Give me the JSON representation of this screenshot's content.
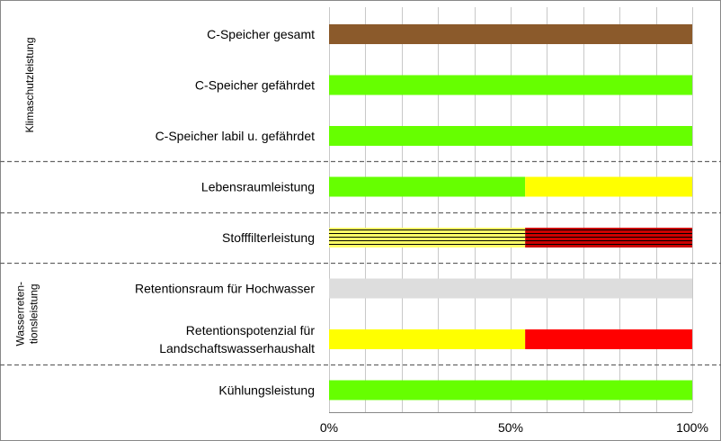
{
  "chart_data": {
    "type": "bar",
    "orientation": "horizontal",
    "stacked": true,
    "percent_axis": true,
    "categories": [
      "C-Speicher gesamt",
      "C-Speicher gefährdet",
      "C-Speicher labil u. gefährdet",
      "Lebensraumleistung",
      "Stofffilterleistung",
      "Retentionsraum für Hochwasser",
      "Retentionspotenzial für\nLandschaftswasserhaushalt",
      "Kühlungsleistung"
    ],
    "groups": [
      {
        "label": "Klimaschutzleistung",
        "categories": [
          0,
          1,
          2
        ]
      },
      {
        "label": "",
        "categories": [
          3
        ]
      },
      {
        "label": "",
        "categories": [
          4
        ]
      },
      {
        "label": "Wasserreten-\ntionsleistung",
        "categories": [
          5,
          6
        ]
      },
      {
        "label": "",
        "categories": [
          7
        ]
      }
    ],
    "segments": [
      [
        {
          "value": 100,
          "color": "#8B5A2B",
          "pattern": "none"
        }
      ],
      [
        {
          "value": 100,
          "color": "#66FF00",
          "pattern": "none"
        }
      ],
      [
        {
          "value": 100,
          "color": "#66FF00",
          "pattern": "none"
        }
      ],
      [
        {
          "value": 54,
          "color": "#66FF00",
          "pattern": "none"
        },
        {
          "value": 46,
          "color": "#FFFF00",
          "pattern": "none"
        }
      ],
      [
        {
          "value": 54,
          "color": "#FFFF66",
          "pattern": "hstripe"
        },
        {
          "value": 46,
          "color": "#CC0000",
          "pattern": "hstripe"
        }
      ],
      [
        {
          "value": 100,
          "color": "#DDDDDD",
          "pattern": "none"
        }
      ],
      [
        {
          "value": 54,
          "color": "#FFFF00",
          "pattern": "none"
        },
        {
          "value": 46,
          "color": "#FF0000",
          "pattern": "none"
        }
      ],
      [
        {
          "value": 100,
          "color": "#66FF00",
          "pattern": "none"
        }
      ]
    ],
    "xlim": [
      0,
      100
    ],
    "xticks": [
      0,
      50,
      100
    ],
    "xtick_labels": [
      "0%",
      "50%",
      "100%"
    ],
    "minor_grid_step": 10,
    "grid": true,
    "legend": "none",
    "title": "",
    "xlabel": "",
    "ylabel": ""
  }
}
